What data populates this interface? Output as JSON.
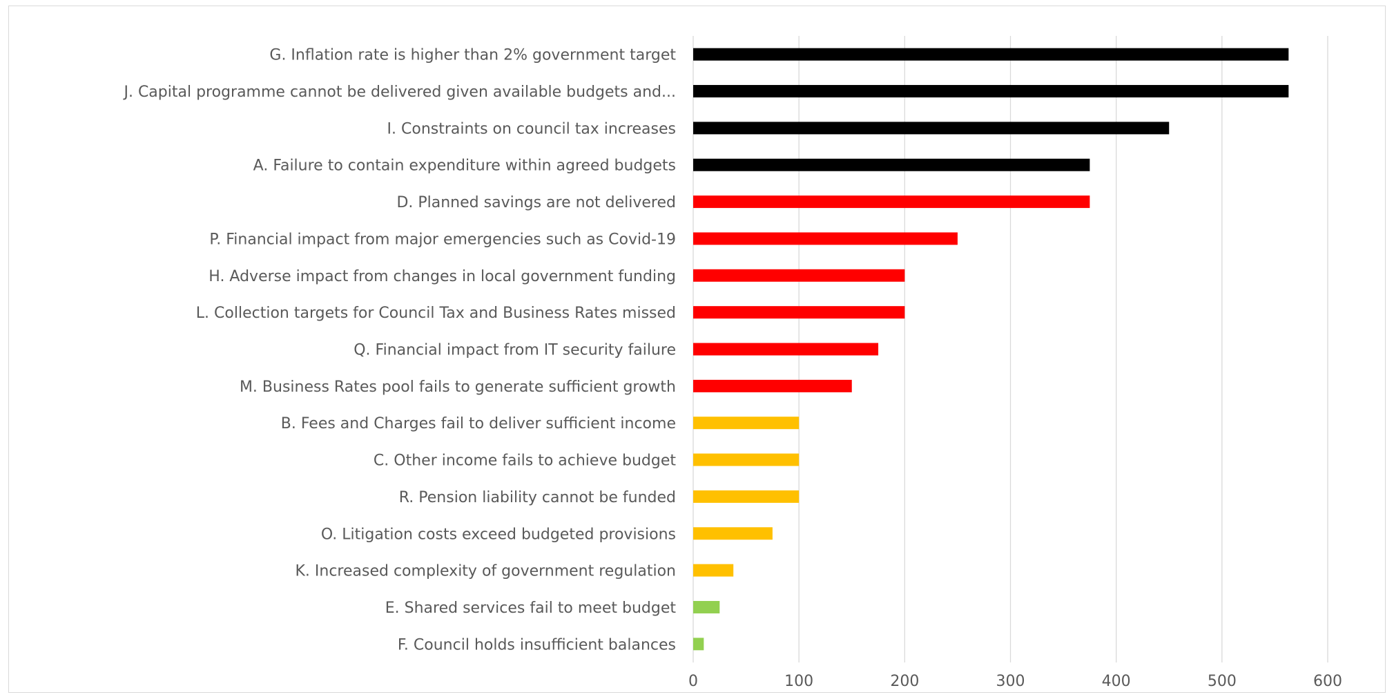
{
  "chart_data": {
    "type": "bar",
    "orientation": "horizontal",
    "title": "",
    "xlabel": "",
    "ylabel": "",
    "xlim": [
      0,
      600
    ],
    "xticks": [
      0,
      100,
      200,
      300,
      400,
      500,
      600
    ],
    "grid": "vertical",
    "legend": "none",
    "color_scale": {
      "black": "#000000",
      "red": "#ff0000",
      "amber": "#ffc000",
      "green": "#92d050"
    },
    "categories": [
      "G. Inflation rate is higher than 2% government target",
      "J. Capital programme cannot be delivered given available budgets and...",
      "I. Constraints on council tax increases",
      "A. Failure to contain expenditure within agreed budgets",
      "D. Planned savings are not delivered",
      "P. Financial impact from major emergencies such as Covid-19",
      "H. Adverse impact from changes in local government funding",
      "L. Collection targets for Council Tax and Business Rates missed",
      "Q. Financial impact from IT security failure",
      "M. Business Rates pool fails to generate sufficient growth",
      "B. Fees and Charges fail to deliver sufficient income",
      "C. Other income fails to achieve budget",
      "R. Pension liability cannot be funded",
      "O. Litigation costs exceed budgeted provisions",
      "K. Increased complexity of government regulation",
      "E. Shared services fail to meet budget",
      "F. Council holds insufficient balances"
    ],
    "values": [
      563,
      563,
      450,
      375,
      375,
      250,
      200,
      200,
      175,
      150,
      100,
      100,
      100,
      75,
      38,
      25,
      10
    ],
    "colors": [
      "#000000",
      "#000000",
      "#000000",
      "#000000",
      "#ff0000",
      "#ff0000",
      "#ff0000",
      "#ff0000",
      "#ff0000",
      "#ff0000",
      "#ffc000",
      "#ffc000",
      "#ffc000",
      "#ffc000",
      "#ffc000",
      "#92d050",
      "#92d050"
    ]
  }
}
